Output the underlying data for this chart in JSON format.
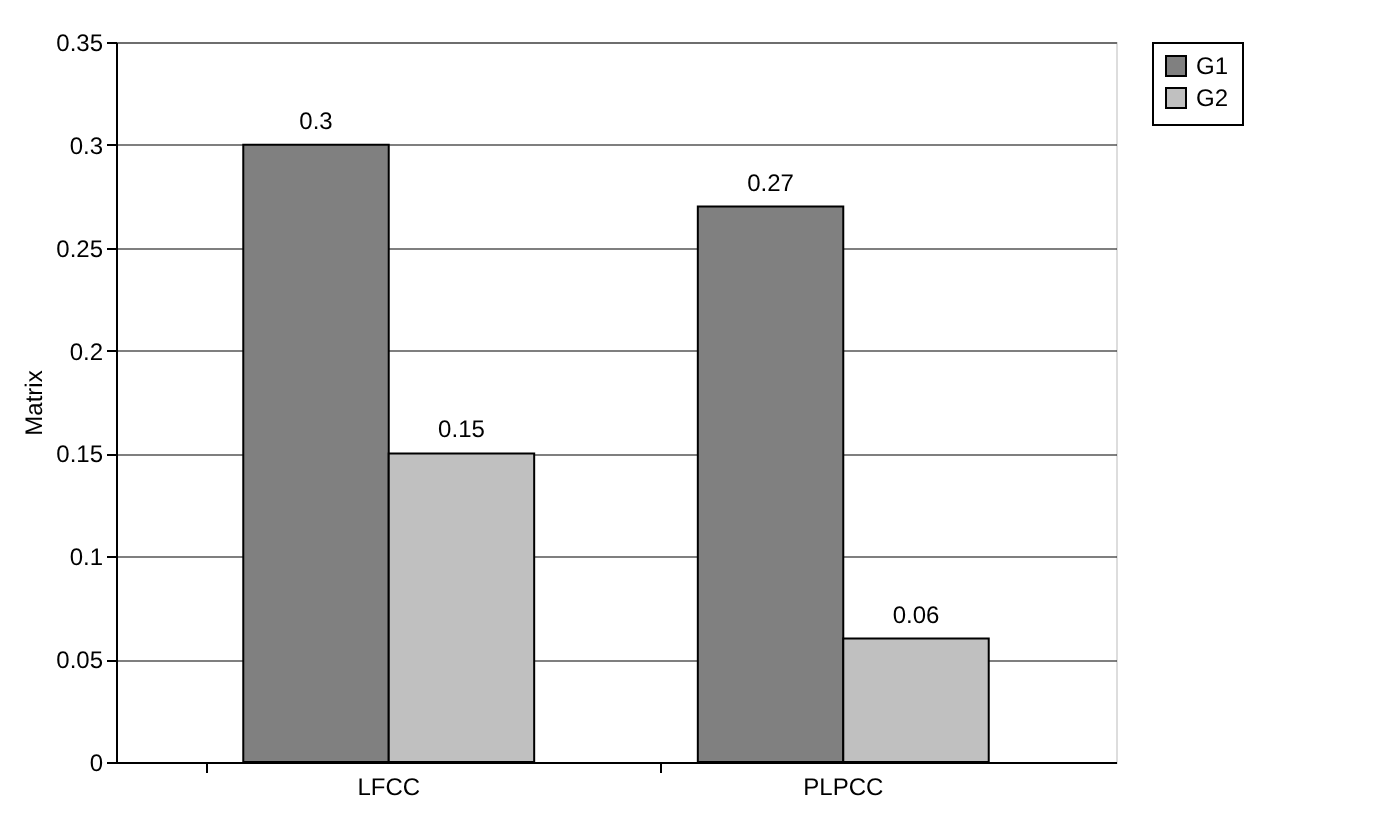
{
  "chart_data": {
    "type": "bar",
    "ylabel": "Matrix",
    "categories": [
      "LFCC",
      "PLPCC"
    ],
    "series": [
      {
        "name": "G1",
        "color": "#808080",
        "values": [
          0.3,
          0.27
        ]
      },
      {
        "name": "G2",
        "color": "#c0c0c0",
        "values": [
          0.15,
          0.06
        ]
      }
    ],
    "ylim": [
      0,
      0.35
    ],
    "yticks": [
      0,
      0.05,
      0.1,
      0.15,
      0.2,
      0.25,
      0.3,
      0.35
    ],
    "grid": "y",
    "legend": "right",
    "data_labels": true
  }
}
